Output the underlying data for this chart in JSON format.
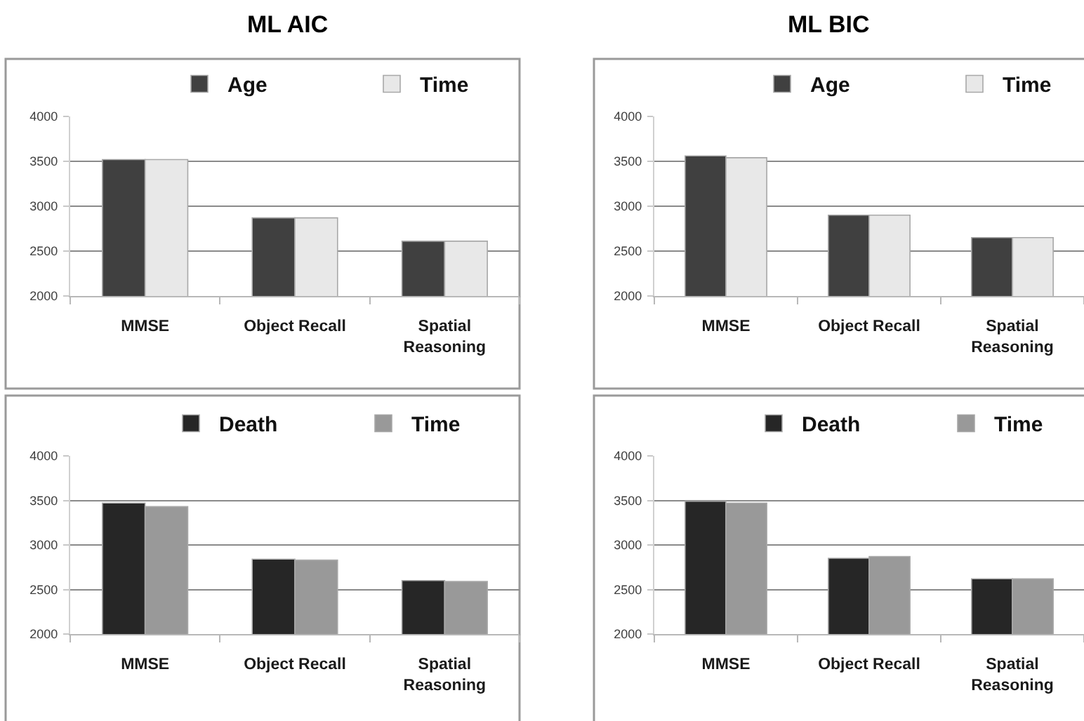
{
  "chart_data": [
    {
      "type": "bar",
      "title": "ML AIC",
      "categories": [
        "MMSE",
        "Object Recall",
        "Spatial\nReasoning"
      ],
      "series": [
        {
          "name": "Age",
          "color": "#404040",
          "values": [
            3520,
            2870,
            2610
          ]
        },
        {
          "name": "Time",
          "color": "#e8e8e8",
          "values": [
            3520,
            2870,
            2610
          ]
        }
      ],
      "ylim": [
        2000,
        4000
      ],
      "yticks": [
        2000,
        2500,
        3000,
        3500,
        4000
      ],
      "grid": "y",
      "legend": "top"
    },
    {
      "type": "bar",
      "title": "ML BIC",
      "categories": [
        "MMSE",
        "Object Recall",
        "Spatial\nReasoning"
      ],
      "series": [
        {
          "name": "Age",
          "color": "#404040",
          "values": [
            3560,
            2900,
            2650
          ]
        },
        {
          "name": "Time",
          "color": "#e8e8e8",
          "values": [
            3540,
            2900,
            2650
          ]
        }
      ],
      "ylim": [
        2000,
        4000
      ],
      "yticks": [
        2000,
        2500,
        3000,
        3500,
        4000
      ],
      "grid": "y",
      "legend": "top"
    },
    {
      "type": "bar",
      "categories": [
        "MMSE",
        "Object Recall",
        "Spatial\nReasoning"
      ],
      "series": [
        {
          "name": "Death",
          "color": "#262626",
          "values": [
            3470,
            2840,
            2600
          ]
        },
        {
          "name": "Time",
          "color": "#999999",
          "values": [
            3430,
            2830,
            2590
          ]
        }
      ],
      "ylim": [
        2000,
        4000
      ],
      "yticks": [
        2000,
        2500,
        3000,
        3500,
        4000
      ],
      "grid": "y",
      "legend": "top"
    },
    {
      "type": "bar",
      "categories": [
        "MMSE",
        "Object Recall",
        "Spatial\nReasoning"
      ],
      "series": [
        {
          "name": "Death",
          "color": "#262626",
          "values": [
            3490,
            2850,
            2620
          ]
        },
        {
          "name": "Time",
          "color": "#999999",
          "values": [
            3470,
            2870,
            2620
          ]
        }
      ],
      "ylim": [
        2000,
        4000
      ],
      "yticks": [
        2000,
        2500,
        3000,
        3500,
        4000
      ],
      "grid": "y",
      "legend": "top"
    }
  ]
}
